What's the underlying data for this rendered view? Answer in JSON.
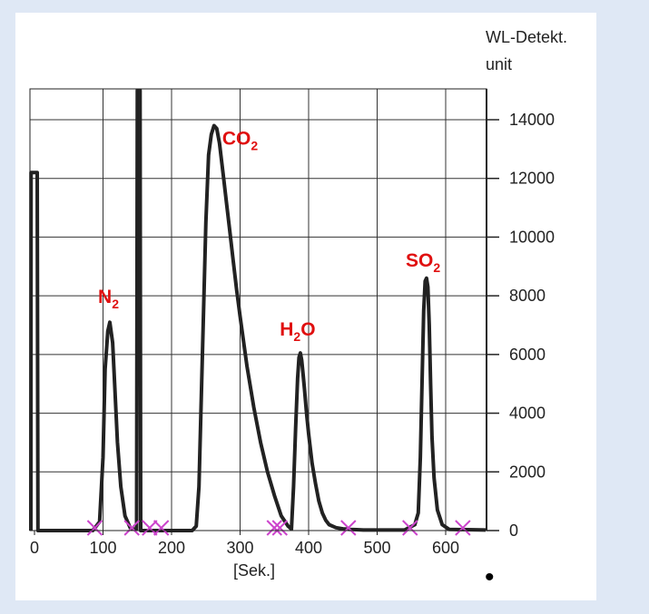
{
  "chart_data": {
    "type": "line",
    "title": "",
    "xlabel": "[Sek.]",
    "ylabel_line1": "WL-Detekt.",
    "ylabel_line2": "unit",
    "xlim": [
      -10,
      680
    ],
    "ylim": [
      0,
      15000
    ],
    "x_ticks": [
      0,
      100,
      200,
      300,
      400,
      500,
      600
    ],
    "y_ticks": [
      0,
      2000,
      4000,
      6000,
      8000,
      10000,
      12000,
      14000
    ],
    "x_gridlines": [
      100,
      200,
      300,
      400,
      500,
      600
    ],
    "y_gridlines": [
      2000,
      4000,
      6000,
      8000,
      10000,
      12000,
      14000
    ],
    "y_axis_side": "right",
    "grid": true,
    "line_color": "#222222",
    "label_color": "#e01010",
    "marker_color": "#cc44cc",
    "series": [
      {
        "x": [
          -8,
          -6,
          -5,
          0,
          4,
          5,
          8,
          85,
          95,
          100,
          103,
          107,
          110,
          114,
          117,
          121,
          126,
          132,
          140,
          145,
          149,
          150,
          154,
          155,
          160,
          230,
          236,
          240,
          245,
          250,
          254,
          258,
          262,
          266,
          270,
          273,
          276,
          280,
          285,
          290,
          295,
          300,
          310,
          320,
          330,
          340,
          350,
          360,
          370,
          375,
          378,
          381,
          384,
          386,
          388,
          390,
          392,
          394,
          397,
          400,
          405,
          410,
          415,
          420,
          425,
          430,
          440,
          450,
          460,
          470,
          480,
          540,
          555,
          560,
          563,
          566,
          568,
          570,
          572,
          574,
          576,
          578,
          580,
          583,
          588,
          595,
          605,
          680
        ],
        "y": [
          0,
          0,
          12200,
          12200,
          12200,
          0,
          0,
          0,
          300,
          2500,
          5500,
          6800,
          7100,
          6400,
          5000,
          3000,
          1500,
          500,
          80,
          50,
          50,
          15000,
          15000,
          0,
          0,
          0,
          150,
          1500,
          6000,
          10500,
          12800,
          13500,
          13800,
          13700,
          13200,
          12600,
          12000,
          11200,
          10200,
          9200,
          8200,
          7300,
          5600,
          4200,
          3000,
          2000,
          1200,
          500,
          150,
          50,
          1500,
          3500,
          5200,
          5900,
          6050,
          5800,
          5300,
          4800,
          4000,
          3300,
          2300,
          1600,
          1000,
          600,
          350,
          200,
          100,
          60,
          40,
          30,
          20,
          20,
          200,
          600,
          2500,
          5500,
          7500,
          8500,
          8600,
          8300,
          7000,
          5000,
          3200,
          1800,
          700,
          200,
          40,
          20
        ]
      }
    ],
    "peak_labels": [
      {
        "main": "N",
        "sub": "2",
        "suffix": "",
        "x": 108,
        "y": 7750
      },
      {
        "main": "CO",
        "sub": "2",
        "suffix": "",
        "x": 300,
        "y": 13150
      },
      {
        "main": "H",
        "sub": "2",
        "suffix": "O",
        "x": 384,
        "y": 6650
      },
      {
        "main": "SO",
        "sub": "2",
        "suffix": "",
        "x": 567,
        "y": 9000
      }
    ],
    "integration_markers": [
      88,
      142,
      168,
      185,
      350,
      358,
      458,
      548,
      625
    ]
  },
  "bullet": "•"
}
